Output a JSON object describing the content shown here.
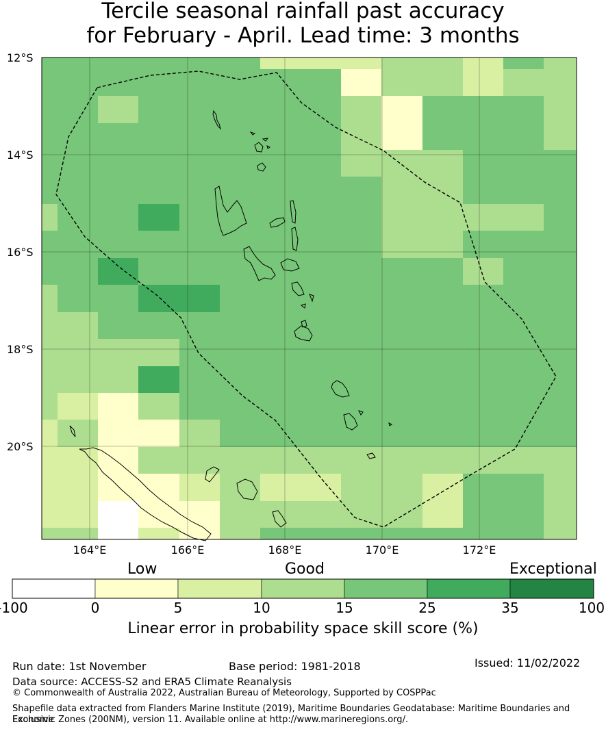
{
  "title": {
    "line1": "Tercile seasonal rainfall past accuracy",
    "line2": "for February - April. Lead time: 3 months"
  },
  "map": {
    "lat_labels": [
      "12°S",
      "14°S",
      "16°S",
      "18°S",
      "20°S"
    ],
    "lon_labels": [
      "164°E",
      "166°E",
      "168°E",
      "170°E",
      "172°E"
    ],
    "extent": {
      "lon_min": 163,
      "lon_max": 174,
      "lat_min": -21.9,
      "lat_max": -12
    }
  },
  "legend": {
    "categories": [
      "Low",
      "Good",
      "Exceptional"
    ],
    "tick_labels": [
      "-100",
      "0",
      "5",
      "10",
      "15",
      "25",
      "35",
      "100"
    ],
    "colors": [
      "#ffffff",
      "#ffffcc",
      "#d9f0a3",
      "#addd8e",
      "#78c679",
      "#41ab5d",
      "#238443"
    ],
    "label": "Linear error in probability space skill score (%)"
  },
  "footer": {
    "run_date": "Run date: 1st November",
    "base_period": "Base period: 1981-2018",
    "issued": "Issued: 11/02/2022",
    "data_source": "Data source: ACCESS-S2 and ERA5 Climate Reanalysis",
    "copyright": "© Commonwealth of Australia 2022, Australian Bureau of Meteorology, Supported by COSPPac",
    "shapefile_1": "Shapefile data extracted from Flanders Marine Institute (2019), Maritime Boundaries Geodatabase: Maritime Boundaries and Exclusive",
    "shapefile_2": "Economic Zones (200NM), version 11. Available online at http://www.marineregions.org/."
  }
}
